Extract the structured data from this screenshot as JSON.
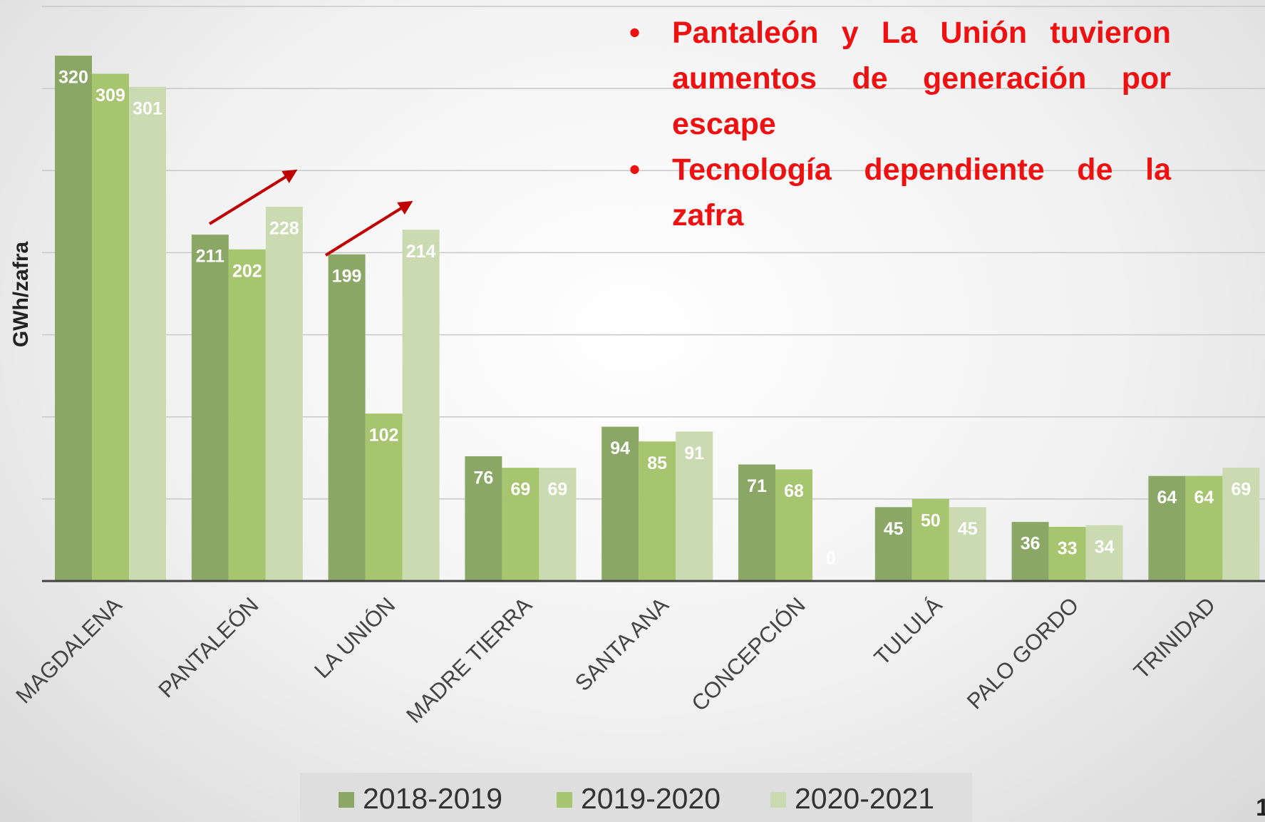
{
  "chart_data": {
    "type": "bar",
    "y_label": "GWh/zafra",
    "categories": [
      "MAGDALENA",
      "PANTALEÓN",
      "LA UNIÓN",
      "MADRE TIERRA",
      "SANTA ANA",
      "CONCEPCIÓN",
      "TULULÁ",
      "PALO GORDO",
      "TRINIDAD"
    ],
    "series": [
      {
        "name": "2018-2019",
        "color": "#8ba766",
        "values": [
          320,
          211,
          199,
          76,
          94,
          71,
          45,
          36,
          64
        ]
      },
      {
        "name": "2019-2020",
        "color": "#a7c46f",
        "values": [
          309,
          202,
          102,
          69,
          85,
          68,
          50,
          33,
          64
        ]
      },
      {
        "name": "2020-2021",
        "color": "#cadbb1",
        "values": [
          301,
          228,
          214,
          69,
          91,
          0,
          45,
          34,
          69
        ]
      }
    ],
    "ylim": [
      0,
      350
    ],
    "yticks": [
      0,
      50,
      100,
      150,
      200,
      250,
      300,
      350
    ],
    "grid": true,
    "annotations": [
      "Pantaleón y La Unión tuvieron aumentos de generación por escape",
      "Tecnología dependiente de la zafra"
    ]
  },
  "slide_number": "1"
}
